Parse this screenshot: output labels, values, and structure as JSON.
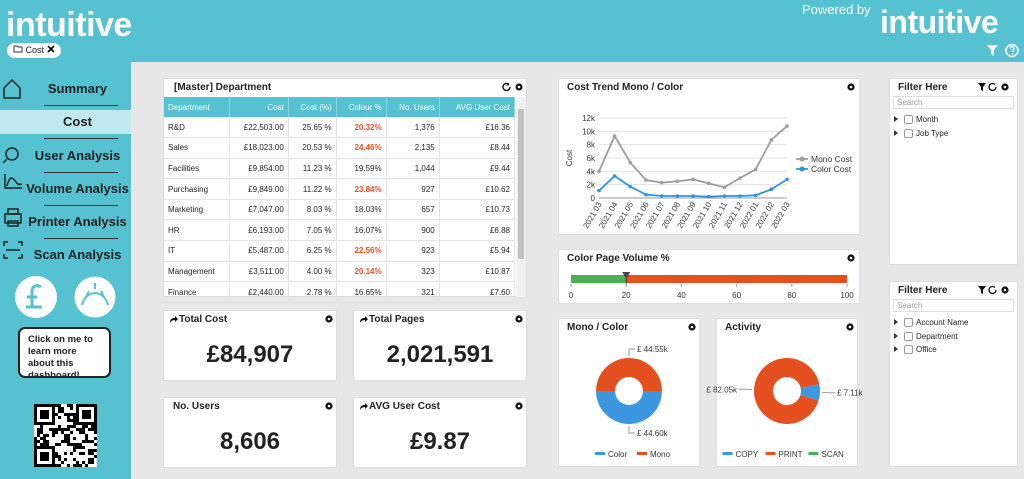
{
  "header": {
    "logo": "intuitive",
    "powered_by": "Powered by",
    "partner_logo": "intuitive",
    "filter_chip": "Cost"
  },
  "sidebar": {
    "nav": [
      "Summary",
      "Cost",
      "User Analysis",
      "Volume Analysis",
      "Printer Analysis",
      "Scan Analysis"
    ],
    "active": 1,
    "callout": "Click on me to learn more about this dashboard!"
  },
  "table": {
    "title": "[Master] Department",
    "columns": [
      "Department",
      "Cost",
      "Cost (%)",
      "Colour %",
      "No. Users",
      "AVG User Cost"
    ],
    "rows": [
      [
        "R&D",
        "£22,503.00",
        "25.65 %",
        "20.32%",
        "1,376",
        "£16.36"
      ],
      [
        "Sales",
        "£18,023.00",
        "20.53 %",
        "24.46%",
        "2,135",
        "£8.44"
      ],
      [
        "Facilities",
        "£9,854.00",
        "11.23 %",
        "19.59%",
        "1,044",
        "£9.44"
      ],
      [
        "Purchasing",
        "£9,849.00",
        "11.22 %",
        "23.84%",
        "927",
        "£10.62"
      ],
      [
        "Marketing",
        "£7,047.00",
        "8.03 %",
        "18.03%",
        "657",
        "£10.73"
      ],
      [
        "HR",
        "£6,193.00",
        "7.05 %",
        "16.07%",
        "900",
        "£6.88"
      ],
      [
        "IT",
        "£5,487.00",
        "6.25 %",
        "22.56%",
        "923",
        "£5.94"
      ],
      [
        "Management",
        "£3,511.00",
        "4.00 %",
        "20.14%",
        "323",
        "£10.87"
      ],
      [
        "Finance",
        "£2,440.00",
        "2.78 %",
        "16.65%",
        "321",
        "£7.60"
      ]
    ],
    "colour_highlight": [
      true,
      true,
      false,
      true,
      false,
      false,
      true,
      true,
      false
    ]
  },
  "kpis": [
    {
      "title": "Total Cost",
      "value": "£84,907",
      "link": true
    },
    {
      "title": "Total Pages",
      "value": "2,021,591",
      "link": true
    },
    {
      "title": "No. Users",
      "value": "8,606",
      "link": false
    },
    {
      "title": "AVG User Cost",
      "value": "£9.87",
      "link": true
    }
  ],
  "line_chart": {
    "type": "line",
    "title": "Cost Trend Mono / Color",
    "y_label": "Cost",
    "categories": [
      "2021 03",
      "2021 04",
      "2021 05",
      "2021 06",
      "2021 07",
      "2021 08",
      "2021 09",
      "2021 10",
      "2021 11",
      "2021 12",
      "2022 01",
      "2022 02",
      "2022 03"
    ],
    "ylim": [
      0,
      12000
    ],
    "yticks": [
      0,
      {
        "value": 2000,
        "label": "2k"
      },
      {
        "value": 4000,
        "label": "4k"
      },
      {
        "value": 6000,
        "label": "6k"
      },
      {
        "value": 8000,
        "label": "8k"
      },
      {
        "value": 10000,
        "label": "10k"
      },
      {
        "value": 12000,
        "label": "12k"
      }
    ],
    "grid": true,
    "series": [
      {
        "name": "Mono Cost",
        "color": "#9e9e9e",
        "values": [
          4000,
          9300,
          5300,
          2700,
          2300,
          2500,
          2800,
          2200,
          1600,
          3000,
          4300,
          8700,
          10800
        ]
      },
      {
        "name": "Color Cost",
        "color": "#2e95e0",
        "values": [
          1100,
          3300,
          1700,
          500,
          300,
          300,
          300,
          200,
          300,
          300,
          400,
          1300,
          2800
        ]
      }
    ]
  },
  "gauge": {
    "type": "bullet",
    "title": "Color Page Volume %",
    "value": 20,
    "xlim": [
      0,
      100
    ],
    "xticks": [
      0,
      20,
      40,
      60,
      80,
      100
    ],
    "colors": [
      "#4caf50",
      "#e4501f"
    ]
  },
  "donuts": [
    {
      "type": "pie",
      "title": "Mono / Color",
      "categories": [
        "Color",
        "Mono"
      ],
      "values": [
        44600,
        44550
      ],
      "value_labels": [
        "£ 44.60k",
        "£ 44.55k"
      ],
      "colors": [
        "#3b97e0",
        "#e4501f"
      ]
    },
    {
      "type": "pie",
      "title": "Activity",
      "categories": [
        "COPY",
        "PRINT",
        "SCAN"
      ],
      "values": [
        7110,
        82050,
        0
      ],
      "value_labels": [
        "£ 7.11k",
        "£ 82.05k",
        null
      ],
      "colors": [
        "#3b97e0",
        "#e4501f",
        "#4caf50"
      ]
    }
  ],
  "filters": [
    {
      "title": "Filter Here",
      "search": "Search",
      "items": [
        "Month",
        "Job Type"
      ]
    },
    {
      "title": "Filter Here",
      "search": "Search",
      "items": [
        "Account Name",
        "Department",
        "Office"
      ]
    }
  ]
}
